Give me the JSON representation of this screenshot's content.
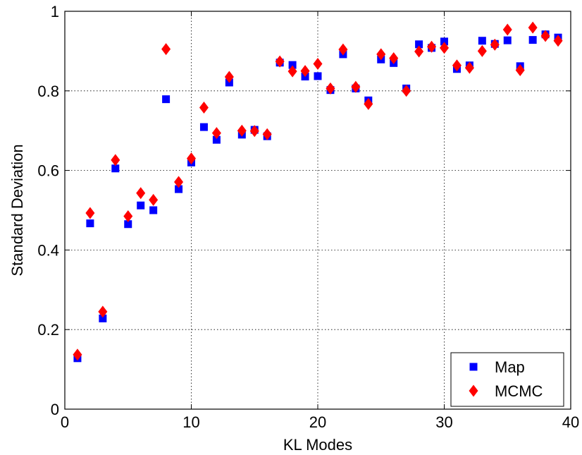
{
  "chart_data": {
    "type": "scatter",
    "xlabel": "KL Modes",
    "ylabel": "Standard Deviation",
    "xlim": [
      0,
      40
    ],
    "ylim": [
      0,
      1
    ],
    "xticks": [
      0,
      10,
      20,
      30,
      40
    ],
    "yticks": [
      0,
      0.2,
      0.4,
      0.6,
      0.8,
      1
    ],
    "xtick_labels": [
      "0",
      "10",
      "20",
      "30",
      "40"
    ],
    "ytick_labels": [
      "0",
      "0.2",
      "0.4",
      "0.6",
      "0.8",
      "1"
    ],
    "grid": true,
    "legend_position": "bottom-right",
    "series": [
      {
        "name": "Map",
        "marker": "square",
        "color": "#0000ff",
        "x": [
          1,
          2,
          3,
          4,
          5,
          6,
          7,
          8,
          9,
          10,
          11,
          12,
          13,
          14,
          15,
          16,
          17,
          18,
          19,
          20,
          21,
          22,
          23,
          24,
          25,
          26,
          27,
          28,
          29,
          30,
          31,
          32,
          33,
          34,
          35,
          36,
          37,
          38,
          39
        ],
        "y": [
          0.128,
          0.467,
          0.228,
          0.605,
          0.465,
          0.512,
          0.5,
          0.779,
          0.553,
          0.62,
          0.709,
          0.677,
          0.821,
          0.69,
          0.702,
          0.686,
          0.871,
          0.865,
          0.836,
          0.837,
          0.802,
          0.892,
          0.806,
          0.776,
          0.879,
          0.87,
          0.806,
          0.917,
          0.908,
          0.924,
          0.855,
          0.864,
          0.926,
          0.918,
          0.927,
          0.862,
          0.928,
          0.942,
          0.934
        ]
      },
      {
        "name": "MCMC",
        "marker": "diamond",
        "color": "#ff0000",
        "x": [
          1,
          2,
          3,
          4,
          5,
          6,
          7,
          8,
          9,
          10,
          11,
          12,
          13,
          14,
          15,
          16,
          17,
          18,
          19,
          20,
          21,
          22,
          23,
          24,
          25,
          26,
          27,
          28,
          29,
          30,
          31,
          32,
          33,
          34,
          35,
          36,
          37,
          38,
          39
        ],
        "y": [
          0.137,
          0.493,
          0.245,
          0.626,
          0.485,
          0.543,
          0.526,
          0.905,
          0.571,
          0.63,
          0.758,
          0.694,
          0.835,
          0.7,
          0.699,
          0.691,
          0.874,
          0.849,
          0.85,
          0.868,
          0.806,
          0.904,
          0.81,
          0.767,
          0.892,
          0.882,
          0.8,
          0.899,
          0.911,
          0.908,
          0.864,
          0.858,
          0.9,
          0.916,
          0.954,
          0.852,
          0.959,
          0.938,
          0.926
        ]
      }
    ]
  }
}
